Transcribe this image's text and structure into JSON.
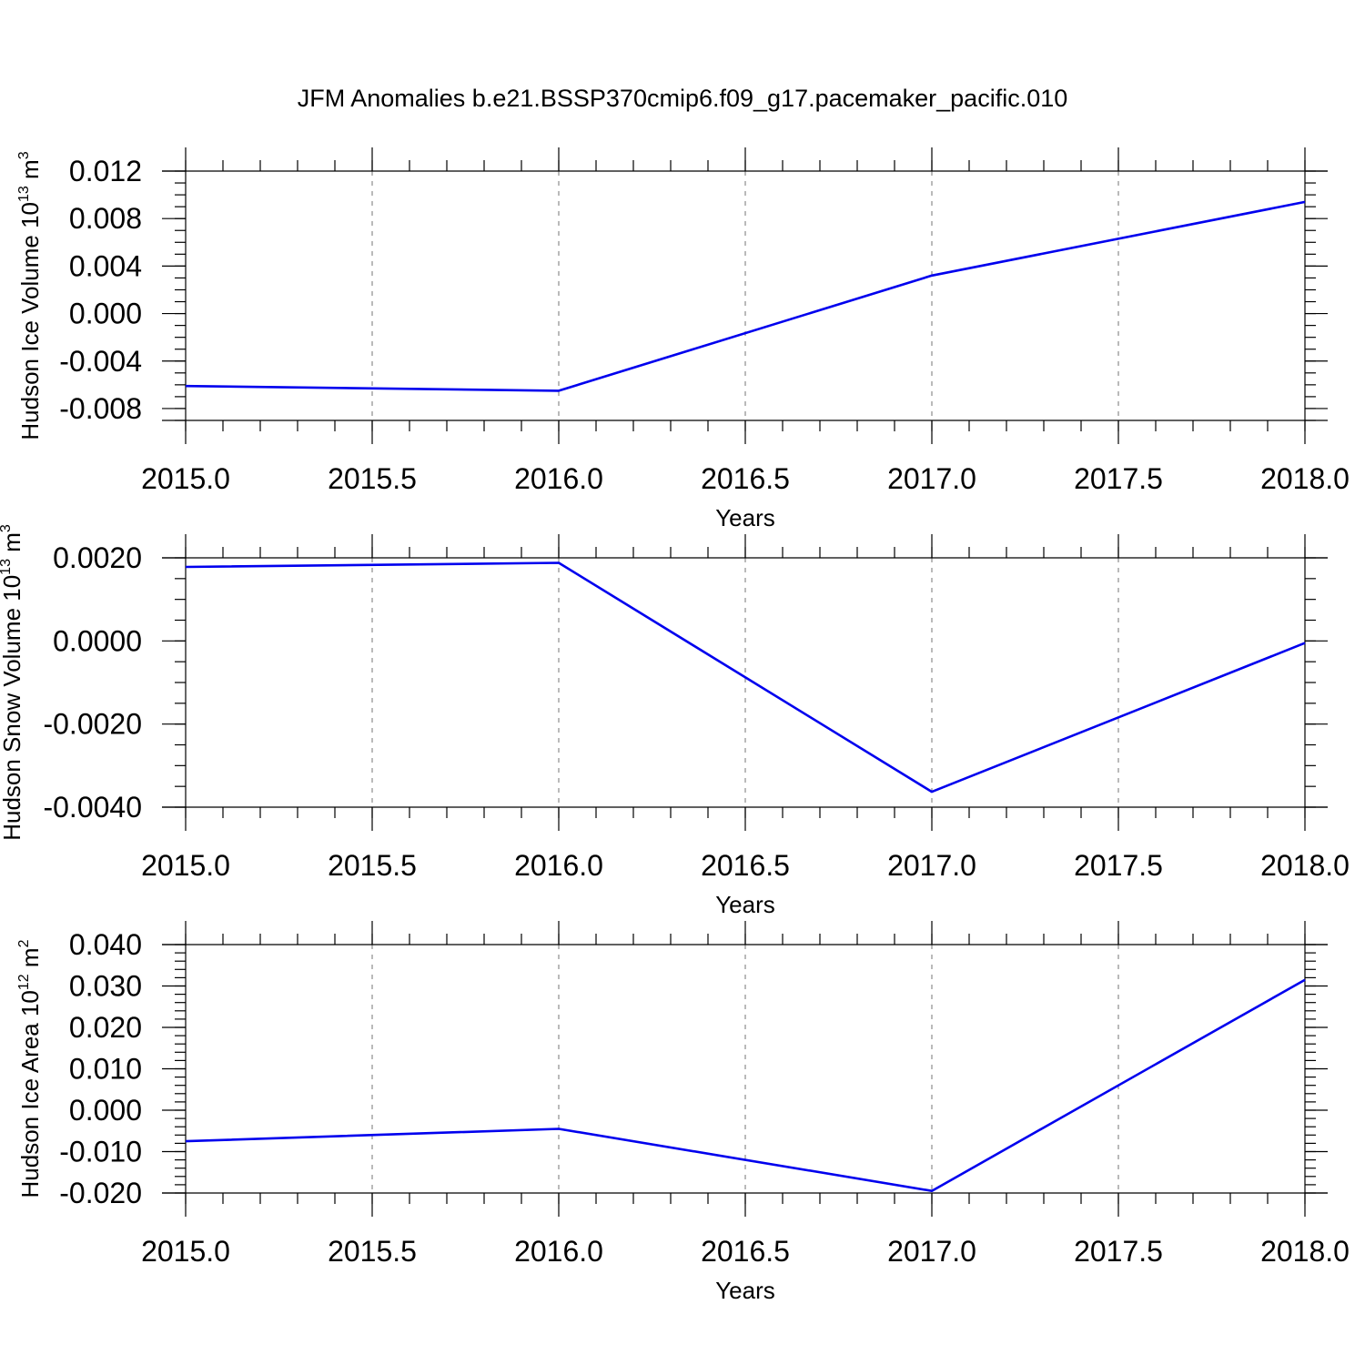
{
  "title": "JFM Anomalies b.e21.BSSP370cmip6.f09_g17.pacemaker_pacific.010",
  "chart_data": [
    {
      "type": "line",
      "xlabel": "Years",
      "ylabel": "Hudson Ice Volume 10",
      "ylabel_exp": "13",
      "ylabel_unit": " m",
      "ylabel_unit_exp": "3",
      "xlim": [
        2015.0,
        2018.0
      ],
      "ylim": [
        -0.009,
        0.012
      ],
      "x_ticks": [
        2015.0,
        2015.5,
        2016.0,
        2016.5,
        2017.0,
        2017.5,
        2018.0
      ],
      "x_tick_labels": [
        "2015.0",
        "2015.5",
        "2016.0",
        "2016.5",
        "2017.0",
        "2017.5",
        "2018.0"
      ],
      "y_ticks": [
        -0.008,
        -0.004,
        0.0,
        0.004,
        0.008,
        0.012
      ],
      "y_tick_labels": [
        "-0.008",
        "-0.004",
        "0.000",
        "0.004",
        "0.008",
        "0.012"
      ],
      "y_minor_step": 0.001,
      "grid": "vertical dashed",
      "line_color": "#0000ee",
      "x": [
        2015,
        2016,
        2017,
        2018
      ],
      "values": [
        -0.0061,
        -0.0065,
        0.0032,
        0.0094
      ]
    },
    {
      "type": "line",
      "xlabel": "Years",
      "ylabel": "Hudson Snow Volume 10",
      "ylabel_exp": "13",
      "ylabel_unit": " m",
      "ylabel_unit_exp": "3",
      "xlim": [
        2015.0,
        2018.0
      ],
      "ylim": [
        -0.004,
        0.002
      ],
      "x_ticks": [
        2015.0,
        2015.5,
        2016.0,
        2016.5,
        2017.0,
        2017.5,
        2018.0
      ],
      "x_tick_labels": [
        "2015.0",
        "2015.5",
        "2016.0",
        "2016.5",
        "2017.0",
        "2017.5",
        "2018.0"
      ],
      "y_ticks": [
        -0.004,
        -0.002,
        0.0,
        0.002
      ],
      "y_tick_labels": [
        "-0.0040",
        "-0.0020",
        "0.0000",
        "0.0020"
      ],
      "y_minor_step": 0.0005,
      "grid": "vertical dashed",
      "line_color": "#0000ee",
      "x": [
        2015,
        2016,
        2017,
        2018
      ],
      "values": [
        0.00178,
        0.00188,
        -0.00363,
        -5e-05
      ]
    },
    {
      "type": "line",
      "xlabel": "Years",
      "ylabel": "Hudson Ice Area 10",
      "ylabel_exp": "12",
      "ylabel_unit": " m",
      "ylabel_unit_exp": "2",
      "xlim": [
        2015.0,
        2018.0
      ],
      "ylim": [
        -0.02,
        0.04
      ],
      "x_ticks": [
        2015.0,
        2015.5,
        2016.0,
        2016.5,
        2017.0,
        2017.5,
        2018.0
      ],
      "x_tick_labels": [
        "2015.0",
        "2015.5",
        "2016.0",
        "2016.5",
        "2017.0",
        "2017.5",
        "2018.0"
      ],
      "y_ticks": [
        -0.02,
        -0.01,
        0.0,
        0.01,
        0.02,
        0.03,
        0.04
      ],
      "y_tick_labels": [
        "-0.020",
        "-0.010",
        "0.000",
        "0.010",
        "0.020",
        "0.030",
        "0.040"
      ],
      "y_minor_step": 0.002,
      "grid": "vertical dashed",
      "line_color": "#0000ee",
      "x": [
        2015,
        2016,
        2017,
        2018
      ],
      "values": [
        -0.0075,
        -0.0045,
        -0.0195,
        0.0315
      ]
    }
  ]
}
